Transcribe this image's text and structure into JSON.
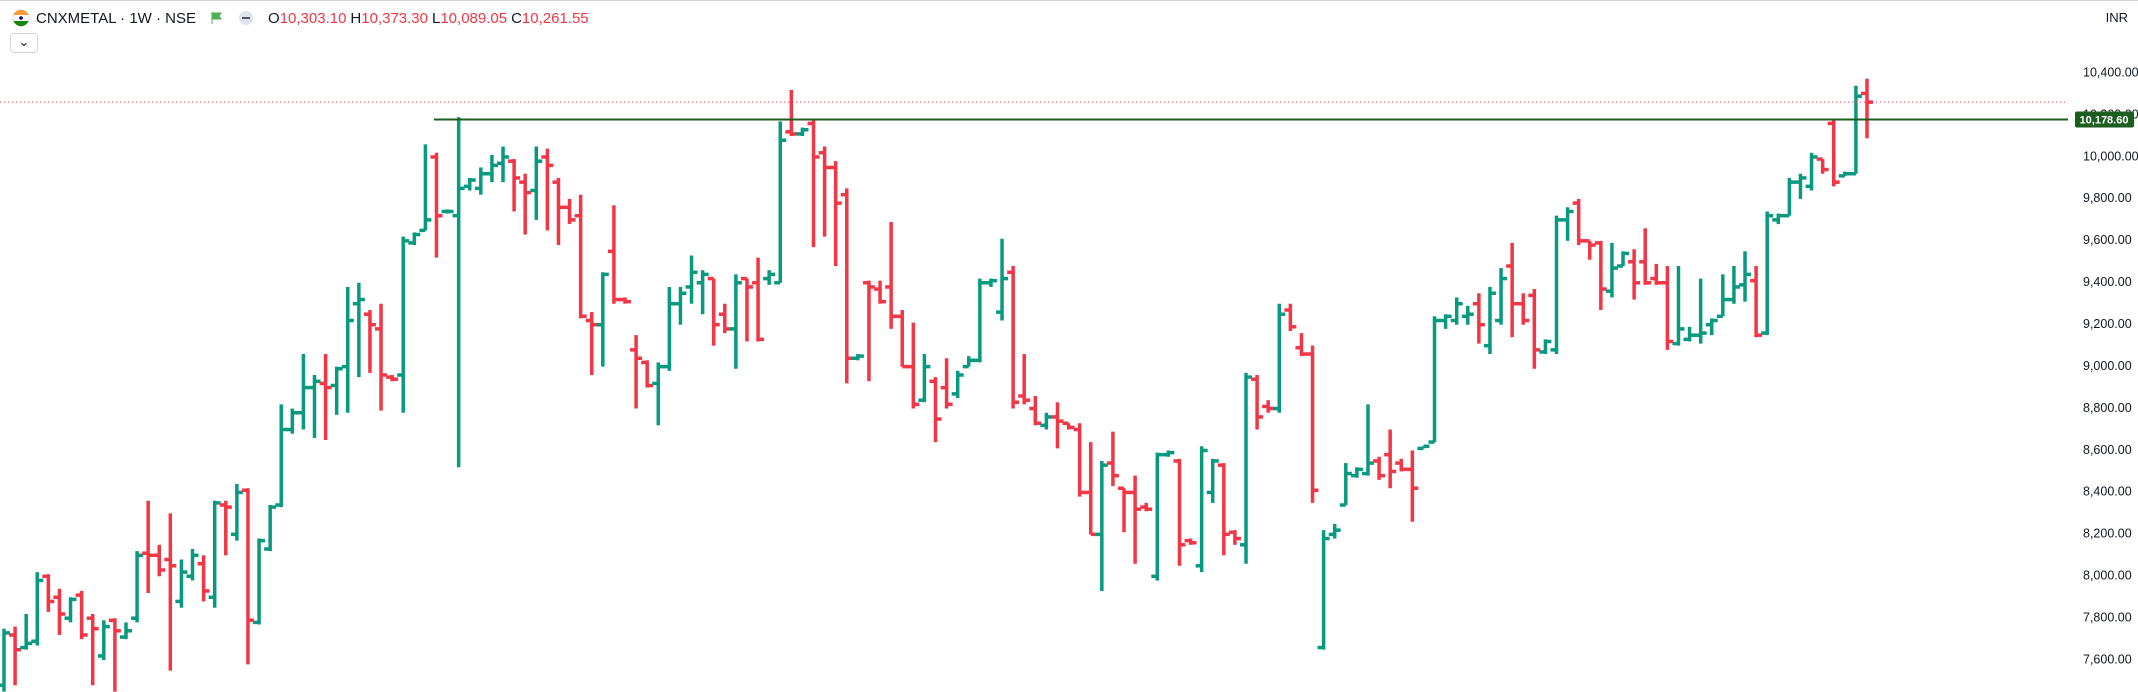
{
  "chart_data": {
    "type": "ohlc",
    "symbol": "CNXMETAL · 1W · NSE",
    "legend": [
      {
        "key": "O",
        "value": "10,303.10"
      },
      {
        "key": "H",
        "value": "10,373.30"
      },
      {
        "key": "L",
        "value": "10,089.05"
      },
      {
        "key": "C",
        "value": "10,261.55"
      }
    ],
    "currency": "INR",
    "up_color": "#089981",
    "down_color": "#f23645",
    "ylim": [
      7448,
      10744
    ],
    "yticks": [
      {
        "value": 7600,
        "label": "7,600.00"
      },
      {
        "value": 7800,
        "label": "7,800.00"
      },
      {
        "value": 8000,
        "label": "8,000.00"
      },
      {
        "value": 8200,
        "label": "8,200.00"
      },
      {
        "value": 8400,
        "label": "8,400.00"
      },
      {
        "value": 8600,
        "label": "8,600.00"
      },
      {
        "value": 8800,
        "label": "8,800.00"
      },
      {
        "value": 9000,
        "label": "9,000.00"
      },
      {
        "value": 9200,
        "label": "9,200.00"
      },
      {
        "value": 9400,
        "label": "9,400.00"
      },
      {
        "value": 9600,
        "label": "9,600.00"
      },
      {
        "value": 9800,
        "label": "9,800.00"
      },
      {
        "value": 10000,
        "label": "10,000.00"
      },
      {
        "value": 10200,
        "label": "10,200.00"
      },
      {
        "value": 10400,
        "label": "10,400.00"
      }
    ],
    "hline": {
      "value": 10178.6,
      "label": "10,178.60",
      "color": "#1b5e20"
    },
    "ohlc": [
      [
        7480,
        7750,
        7450,
        7730
      ],
      [
        7720,
        7760,
        7480,
        7650
      ],
      [
        7660,
        7820,
        7650,
        7680
      ],
      [
        7690,
        8020,
        7670,
        7980
      ],
      [
        8000,
        8010,
        7830,
        7880
      ],
      [
        7900,
        7940,
        7720,
        7820
      ],
      [
        7800,
        7900,
        7780,
        7890
      ],
      [
        7910,
        7930,
        7700,
        7720
      ],
      [
        7800,
        7820,
        7480,
        7750
      ],
      [
        7620,
        7790,
        7600,
        7760
      ],
      [
        7790,
        7800,
        7450,
        7740
      ],
      [
        7710,
        7780,
        7700,
        7740
      ],
      [
        7800,
        8120,
        7780,
        8100
      ],
      [
        8110,
        8360,
        7920,
        8100
      ],
      [
        8100,
        8150,
        8000,
        8030
      ],
      [
        8080,
        8300,
        7550,
        8050
      ],
      [
        7880,
        8080,
        7850,
        8020
      ],
      [
        8000,
        8130,
        7980,
        8100
      ],
      [
        8060,
        8100,
        7880,
        7930
      ],
      [
        7900,
        8360,
        7850,
        8350
      ],
      [
        8340,
        8360,
        8100,
        8330
      ],
      [
        8200,
        8440,
        8170,
        8400
      ],
      [
        8410,
        8420,
        7580,
        7790
      ],
      [
        7780,
        8180,
        7770,
        8170
      ],
      [
        8130,
        8340,
        8120,
        8330
      ],
      [
        8340,
        8820,
        8330,
        8700
      ],
      [
        8700,
        8800,
        8680,
        8780
      ],
      [
        8780,
        9060,
        8700,
        8900
      ],
      [
        8900,
        8960,
        8660,
        8930
      ],
      [
        8920,
        9060,
        8650,
        8900
      ],
      [
        8910,
        9000,
        8770,
        8990
      ],
      [
        9000,
        9380,
        8780,
        9220
      ],
      [
        9300,
        9400,
        8950,
        9320
      ],
      [
        9250,
        9270,
        8970,
        9200
      ],
      [
        9180,
        9300,
        8790,
        8960
      ],
      [
        8950,
        8960,
        8930,
        8940
      ],
      [
        8960,
        9620,
        8780,
        9600
      ],
      [
        9590,
        9640,
        9580,
        9630
      ],
      [
        9650,
        10060,
        9650,
        9700
      ],
      [
        10000,
        10020,
        9520,
        9720
      ],
      [
        9740,
        9750,
        9730,
        9740
      ],
      [
        9720,
        10190,
        8520,
        9850
      ],
      [
        9860,
        9900,
        9840,
        9890
      ],
      [
        9850,
        9950,
        9820,
        9920
      ],
      [
        9920,
        10010,
        9880,
        9960
      ],
      [
        9970,
        10050,
        9880,
        10000
      ],
      [
        9980,
        9990,
        9740,
        9900
      ],
      [
        9880,
        9920,
        9630,
        9830
      ],
      [
        9840,
        10050,
        9700,
        9980
      ],
      [
        10000,
        10040,
        9650,
        9960
      ],
      [
        9880,
        9900,
        9580,
        9760
      ],
      [
        9760,
        9800,
        9680,
        9700
      ],
      [
        9720,
        9820,
        9230,
        9240
      ],
      [
        9220,
        9260,
        8960,
        9200
      ],
      [
        9200,
        9450,
        9000,
        9440
      ],
      [
        9550,
        9770,
        9300,
        9320
      ],
      [
        9320,
        9330,
        9300,
        9310
      ],
      [
        9080,
        9150,
        8800,
        9040
      ],
      [
        9020,
        9030,
        8900,
        8910
      ],
      [
        8920,
        9020,
        8720,
        9000
      ],
      [
        9000,
        9380,
        8980,
        9300
      ],
      [
        9300,
        9380,
        9200,
        9350
      ],
      [
        9380,
        9530,
        9300,
        9450
      ],
      [
        9400,
        9460,
        9250,
        9440
      ],
      [
        9420,
        9420,
        9100,
        9200
      ],
      [
        9250,
        9300,
        9160,
        9180
      ],
      [
        9180,
        9440,
        8990,
        9400
      ],
      [
        9420,
        9420,
        9120,
        9380
      ],
      [
        9400,
        9520,
        9120,
        9130
      ],
      [
        9420,
        9460,
        9390,
        9440
      ],
      [
        9400,
        10170,
        9400,
        10080
      ],
      [
        10120,
        10320,
        10100,
        10110
      ],
      [
        10110,
        10140,
        10100,
        10130
      ],
      [
        10160,
        10180,
        9570,
        10000
      ],
      [
        10020,
        10050,
        9620,
        9950
      ],
      [
        9950,
        9980,
        9480,
        9780
      ],
      [
        9820,
        9850,
        8920,
        9040
      ],
      [
        9040,
        9060,
        9030,
        9050
      ],
      [
        9400,
        9410,
        8930,
        9380
      ],
      [
        9370,
        9410,
        9300,
        9310
      ],
      [
        9380,
        9690,
        9180,
        9240
      ],
      [
        9240,
        9270,
        9000,
        9000
      ],
      [
        9000,
        9210,
        8800,
        8820
      ],
      [
        8840,
        9060,
        8830,
        9000
      ],
      [
        8930,
        8950,
        8640,
        8750
      ],
      [
        8900,
        9040,
        8800,
        8820
      ],
      [
        8870,
        8980,
        8850,
        8960
      ],
      [
        9000,
        9050,
        9000,
        9030
      ],
      [
        9030,
        9420,
        9020,
        9400
      ],
      [
        9400,
        9420,
        9380,
        9410
      ],
      [
        9260,
        9610,
        9220,
        9420
      ],
      [
        9450,
        9480,
        8800,
        8830
      ],
      [
        8860,
        9060,
        8820,
        8840
      ],
      [
        8800,
        8860,
        8720,
        8730
      ],
      [
        8720,
        8780,
        8700,
        8760
      ],
      [
        8760,
        8830,
        8610,
        8740
      ],
      [
        8730,
        8730,
        8700,
        8710
      ],
      [
        8700,
        8730,
        8380,
        8400
      ],
      [
        8400,
        8640,
        8200,
        8200
      ],
      [
        8200,
        8550,
        7930,
        8530
      ],
      [
        8540,
        8690,
        8430,
        8480
      ],
      [
        8420,
        8420,
        8210,
        8400
      ],
      [
        8400,
        8480,
        8060,
        8320
      ],
      [
        8330,
        8350,
        8310,
        8320
      ],
      [
        8000,
        8590,
        7980,
        8580
      ],
      [
        8580,
        8600,
        8570,
        8590
      ],
      [
        8550,
        8560,
        8050,
        8150
      ],
      [
        8170,
        8180,
        8150,
        8160
      ],
      [
        8050,
        8620,
        8020,
        8600
      ],
      [
        8400,
        8560,
        8350,
        8550
      ],
      [
        8530,
        8540,
        8100,
        8200
      ],
      [
        8210,
        8220,
        8150,
        8180
      ],
      [
        8150,
        8970,
        8060,
        8950
      ],
      [
        8940,
        8960,
        8700,
        8760
      ],
      [
        8810,
        8840,
        8780,
        8800
      ],
      [
        8800,
        9300,
        8780,
        9250
      ],
      [
        9270,
        9300,
        9170,
        9190
      ],
      [
        9090,
        9160,
        9050,
        9060
      ],
      [
        9060,
        9100,
        8350,
        8410
      ],
      [
        7660,
        8220,
        7650,
        8180
      ],
      [
        8200,
        8250,
        8180,
        8220
      ],
      [
        8340,
        8540,
        8340,
        8490
      ],
      [
        8480,
        8520,
        8470,
        8510
      ],
      [
        8490,
        8820,
        8480,
        8540
      ],
      [
        8550,
        8570,
        8460,
        8480
      ],
      [
        8580,
        8700,
        8420,
        8500
      ],
      [
        8540,
        8560,
        8500,
        8510
      ],
      [
        8510,
        8600,
        8260,
        8420
      ],
      [
        8610,
        8620,
        8610,
        8620
      ],
      [
        8640,
        9240,
        8640,
        9220
      ],
      [
        9220,
        9250,
        9180,
        9240
      ],
      [
        9220,
        9330,
        9200,
        9300
      ],
      [
        9240,
        9290,
        9200,
        9250
      ],
      [
        9300,
        9350,
        9110,
        9200
      ],
      [
        9100,
        9380,
        9060,
        9350
      ],
      [
        9220,
        9470,
        9200,
        9420
      ],
      [
        9480,
        9590,
        9140,
        9300
      ],
      [
        9300,
        9350,
        9200,
        9220
      ],
      [
        9340,
        9370,
        8990,
        9080
      ],
      [
        9070,
        9130,
        9060,
        9120
      ],
      [
        9080,
        9720,
        9060,
        9700
      ],
      [
        9700,
        9760,
        9600,
        9740
      ],
      [
        9780,
        9800,
        9580,
        9600
      ],
      [
        9600,
        9600,
        9510,
        9580
      ],
      [
        9590,
        9600,
        9270,
        9370
      ],
      [
        9360,
        9590,
        9330,
        9470
      ],
      [
        9480,
        9550,
        9480,
        9540
      ],
      [
        9500,
        9560,
        9320,
        9400
      ],
      [
        9500,
        9660,
        9390,
        9400
      ],
      [
        9420,
        9490,
        9390,
        9400
      ],
      [
        9400,
        9480,
        9080,
        9120
      ],
      [
        9110,
        9480,
        9100,
        9180
      ],
      [
        9130,
        9190,
        9120,
        9150
      ],
      [
        9150,
        9420,
        9110,
        9160
      ],
      [
        9200,
        9230,
        9150,
        9220
      ],
      [
        9240,
        9440,
        9240,
        9320
      ],
      [
        9320,
        9480,
        9300,
        9380
      ],
      [
        9390,
        9550,
        9310,
        9440
      ],
      [
        9410,
        9480,
        9140,
        9150
      ],
      [
        9160,
        9740,
        9150,
        9720
      ],
      [
        9700,
        9730,
        9680,
        9720
      ],
      [
        9720,
        9900,
        9720,
        9880
      ],
      [
        9880,
        9920,
        9800,
        9900
      ],
      [
        9860,
        10020,
        9840,
        10000
      ],
      [
        9990,
        9990,
        9920,
        9940
      ],
      [
        10160,
        10180,
        9860,
        9880
      ],
      [
        9910,
        9930,
        9910,
        9920
      ],
      [
        9920,
        10340,
        9920,
        10290
      ],
      [
        10303.1,
        10373.3,
        10089.05,
        10261.55
      ]
    ]
  }
}
